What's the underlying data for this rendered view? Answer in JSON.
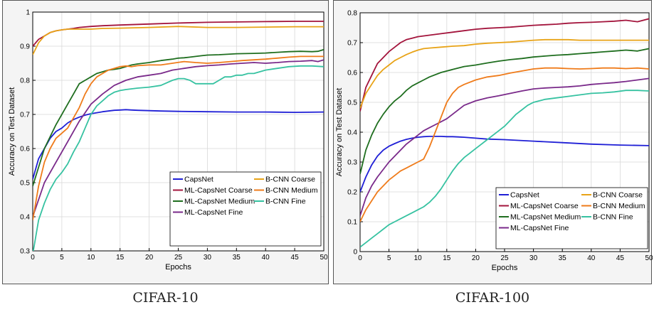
{
  "colors": {
    "CapsNet": "#1f1fd6",
    "ML-CapsNet Coarse": "#a3143c",
    "ML-CapsNet Medium": "#1f6e1f",
    "ML-CapsNet Fine": "#7a2a8a",
    "B-CNN Coarse": "#e8a317",
    "B-CNN Medium": "#ef7b1a",
    "B-CNN Fine": "#36c2a1"
  },
  "captions": {
    "left": "CIFAR-10",
    "right": "CIFAR-100"
  },
  "chart_data": [
    {
      "type": "line",
      "title": "CIFAR-10",
      "xlabel": "Epochs",
      "ylabel": "Accuracy on Test Dataset",
      "xlim": [
        0,
        50
      ],
      "ylim": [
        0.3,
        1.0
      ],
      "xticks": [
        0,
        5,
        10,
        15,
        20,
        25,
        30,
        35,
        40,
        45,
        50
      ],
      "yticks": [
        0.3,
        0.4,
        0.5,
        0.6,
        0.7,
        0.8,
        0.9,
        1.0
      ],
      "ytick_labels": [
        "0.3",
        "0.4",
        "0.5",
        "0.6",
        "0.7",
        "0.8",
        "0.9",
        "1"
      ],
      "grid": true,
      "legend_position": "bottom-right",
      "legend_order": [
        "CapsNet",
        "ML-CapsNet Coarse",
        "ML-CapsNet Medium",
        "ML-CapsNet Fine",
        "B-CNN Coarse",
        "B-CNN Medium",
        "B-CNN Fine"
      ],
      "series": [
        {
          "name": "CapsNet",
          "x": [
            0,
            1,
            2,
            3,
            4,
            5,
            6,
            7,
            8,
            9,
            10,
            11,
            12,
            13,
            14,
            15,
            16,
            17,
            18,
            20,
            22,
            25,
            30,
            35,
            40,
            45,
            50
          ],
          "values": [
            0.51,
            0.57,
            0.6,
            0.63,
            0.65,
            0.66,
            0.675,
            0.685,
            0.692,
            0.698,
            0.702,
            0.705,
            0.708,
            0.71,
            0.712,
            0.713,
            0.714,
            0.713,
            0.712,
            0.711,
            0.71,
            0.709,
            0.708,
            0.707,
            0.707,
            0.706,
            0.707
          ]
        },
        {
          "name": "ML-CapsNet Coarse",
          "x": [
            0,
            1,
            2,
            3,
            4,
            5,
            6,
            7,
            8,
            10,
            12,
            15,
            20,
            25,
            30,
            35,
            40,
            45,
            50
          ],
          "values": [
            0.9,
            0.92,
            0.93,
            0.94,
            0.945,
            0.948,
            0.95,
            0.952,
            0.955,
            0.958,
            0.96,
            0.962,
            0.965,
            0.968,
            0.97,
            0.971,
            0.972,
            0.973,
            0.973
          ]
        },
        {
          "name": "ML-CapsNet Medium",
          "x": [
            0,
            2,
            4,
            6,
            7,
            8,
            9,
            10,
            11,
            12,
            13,
            14,
            15,
            16,
            17,
            18,
            19,
            20,
            21,
            22,
            23,
            24,
            25,
            26,
            27,
            28,
            29,
            30,
            32,
            35,
            38,
            40,
            42,
            44,
            46,
            48,
            49,
            50
          ],
          "values": [
            0.49,
            0.6,
            0.67,
            0.73,
            0.76,
            0.79,
            0.8,
            0.81,
            0.82,
            0.825,
            0.83,
            0.832,
            0.835,
            0.84,
            0.845,
            0.848,
            0.85,
            0.852,
            0.855,
            0.858,
            0.86,
            0.862,
            0.865,
            0.866,
            0.868,
            0.87,
            0.872,
            0.874,
            0.875,
            0.878,
            0.879,
            0.88,
            0.882,
            0.884,
            0.885,
            0.884,
            0.885,
            0.89
          ]
        },
        {
          "name": "ML-CapsNet Fine",
          "x": [
            0,
            2,
            4,
            6,
            8,
            10,
            12,
            14,
            16,
            18,
            20,
            22,
            24,
            26,
            28,
            30,
            32,
            34,
            36,
            38,
            40,
            42,
            44,
            46,
            48,
            49,
            50
          ],
          "values": [
            0.4,
            0.5,
            0.56,
            0.62,
            0.68,
            0.73,
            0.76,
            0.785,
            0.8,
            0.81,
            0.815,
            0.82,
            0.83,
            0.835,
            0.84,
            0.843,
            0.845,
            0.848,
            0.85,
            0.852,
            0.85,
            0.852,
            0.855,
            0.856,
            0.858,
            0.855,
            0.86
          ]
        },
        {
          "name": "B-CNN Coarse",
          "x": [
            0,
            1,
            2,
            3,
            4,
            5,
            6,
            8,
            10,
            12,
            15,
            20,
            25,
            30,
            35,
            40,
            45,
            50
          ],
          "values": [
            0.875,
            0.91,
            0.93,
            0.94,
            0.945,
            0.948,
            0.95,
            0.95,
            0.95,
            0.952,
            0.953,
            0.955,
            0.958,
            0.955,
            0.955,
            0.956,
            0.957,
            0.957
          ]
        },
        {
          "name": "B-CNN Medium",
          "x": [
            0,
            1,
            2,
            3,
            4,
            5,
            6,
            7,
            8,
            9,
            10,
            11,
            12,
            13,
            14,
            15,
            16,
            17,
            18,
            20,
            22,
            24,
            26,
            28,
            30,
            32,
            34,
            36,
            38,
            40,
            42,
            44,
            46,
            48,
            50
          ],
          "values": [
            0.39,
            0.49,
            0.56,
            0.6,
            0.63,
            0.645,
            0.66,
            0.69,
            0.72,
            0.76,
            0.79,
            0.81,
            0.82,
            0.83,
            0.835,
            0.84,
            0.842,
            0.84,
            0.843,
            0.845,
            0.845,
            0.85,
            0.855,
            0.852,
            0.85,
            0.852,
            0.855,
            0.858,
            0.86,
            0.862,
            0.865,
            0.868,
            0.87,
            0.87,
            0.87
          ]
        },
        {
          "name": "B-CNN Fine",
          "x": [
            0,
            1,
            2,
            3,
            4,
            5,
            6,
            7,
            8,
            9,
            10,
            11,
            12,
            13,
            14,
            15,
            16,
            17,
            18,
            20,
            22,
            24,
            25,
            26,
            27,
            28,
            29,
            30,
            31,
            32,
            33,
            34,
            35,
            36,
            37,
            38,
            40,
            42,
            44,
            46,
            48,
            50
          ],
          "values": [
            0.29,
            0.39,
            0.44,
            0.48,
            0.51,
            0.53,
            0.555,
            0.59,
            0.62,
            0.66,
            0.7,
            0.725,
            0.74,
            0.755,
            0.765,
            0.77,
            0.773,
            0.775,
            0.777,
            0.78,
            0.785,
            0.8,
            0.805,
            0.805,
            0.8,
            0.79,
            0.79,
            0.79,
            0.79,
            0.8,
            0.81,
            0.81,
            0.815,
            0.815,
            0.82,
            0.82,
            0.83,
            0.835,
            0.84,
            0.842,
            0.842,
            0.84
          ]
        }
      ]
    },
    {
      "type": "line",
      "title": "CIFAR-100",
      "xlabel": "Epochs",
      "ylabel": "Accuracy on Test Dataset",
      "xlim": [
        0,
        50
      ],
      "ylim": [
        0,
        0.8
      ],
      "xticks": [
        0,
        5,
        10,
        15,
        20,
        25,
        30,
        35,
        40,
        45,
        50
      ],
      "yticks": [
        0,
        0.1,
        0.2,
        0.3,
        0.4,
        0.5,
        0.6,
        0.7,
        0.8
      ],
      "ytick_labels": [
        "0",
        "0.1",
        "0.2",
        "0.3",
        "0.4",
        "0.5",
        "0.6",
        "0.7",
        "0.8"
      ],
      "grid": true,
      "legend_position": "bottom-right",
      "legend_order": [
        "CapsNet",
        "ML-CapsNet Coarse",
        "ML-CapsNet Medium",
        "ML-CapsNet Fine",
        "B-CNN Coarse",
        "B-CNN Medium",
        "B-CNN Fine"
      ],
      "series": [
        {
          "name": "CapsNet",
          "x": [
            0,
            1,
            2,
            3,
            4,
            5,
            6,
            7,
            8,
            9,
            10,
            11,
            12,
            13,
            14,
            15,
            16,
            17,
            18,
            20,
            22,
            25,
            30,
            35,
            40,
            45,
            50
          ],
          "values": [
            0.2,
            0.25,
            0.29,
            0.32,
            0.34,
            0.353,
            0.362,
            0.37,
            0.376,
            0.38,
            0.383,
            0.385,
            0.386,
            0.386,
            0.386,
            0.385,
            0.385,
            0.384,
            0.383,
            0.38,
            0.377,
            0.375,
            0.37,
            0.365,
            0.36,
            0.357,
            0.355
          ]
        },
        {
          "name": "ML-CapsNet Coarse",
          "x": [
            0,
            1,
            2,
            3,
            4,
            5,
            6,
            7,
            8,
            9,
            10,
            12,
            14,
            16,
            18,
            20,
            22,
            24,
            26,
            28,
            30,
            32,
            34,
            36,
            38,
            40,
            42,
            44,
            46,
            48,
            50
          ],
          "values": [
            0.47,
            0.55,
            0.59,
            0.63,
            0.65,
            0.67,
            0.685,
            0.7,
            0.71,
            0.715,
            0.72,
            0.725,
            0.73,
            0.735,
            0.74,
            0.745,
            0.748,
            0.75,
            0.752,
            0.755,
            0.758,
            0.76,
            0.762,
            0.765,
            0.767,
            0.768,
            0.77,
            0.772,
            0.775,
            0.77,
            0.78
          ]
        },
        {
          "name": "ML-CapsNet Medium",
          "x": [
            0,
            1,
            2,
            3,
            4,
            5,
            6,
            7,
            8,
            9,
            10,
            11,
            12,
            14,
            16,
            18,
            20,
            22,
            24,
            26,
            28,
            30,
            32,
            34,
            36,
            38,
            40,
            42,
            44,
            46,
            48,
            50
          ],
          "values": [
            0.26,
            0.34,
            0.39,
            0.43,
            0.46,
            0.485,
            0.505,
            0.52,
            0.54,
            0.555,
            0.565,
            0.575,
            0.585,
            0.6,
            0.61,
            0.62,
            0.625,
            0.632,
            0.638,
            0.643,
            0.647,
            0.652,
            0.655,
            0.658,
            0.66,
            0.663,
            0.666,
            0.669,
            0.672,
            0.675,
            0.672,
            0.68
          ]
        },
        {
          "name": "ML-CapsNet Fine",
          "x": [
            0,
            1,
            2,
            3,
            4,
            5,
            6,
            7,
            8,
            9,
            10,
            11,
            12,
            13,
            14,
            15,
            16,
            18,
            20,
            22,
            24,
            26,
            28,
            30,
            32,
            34,
            36,
            38,
            40,
            42,
            44,
            46,
            48,
            50
          ],
          "values": [
            0.12,
            0.18,
            0.22,
            0.25,
            0.275,
            0.3,
            0.32,
            0.34,
            0.36,
            0.375,
            0.39,
            0.405,
            0.415,
            0.425,
            0.435,
            0.445,
            0.46,
            0.49,
            0.505,
            0.515,
            0.522,
            0.53,
            0.538,
            0.545,
            0.548,
            0.55,
            0.552,
            0.555,
            0.56,
            0.563,
            0.566,
            0.57,
            0.575,
            0.58
          ]
        },
        {
          "name": "B-CNN Coarse",
          "x": [
            0,
            1,
            2,
            3,
            4,
            5,
            6,
            7,
            8,
            9,
            10,
            11,
            12,
            14,
            16,
            18,
            20,
            22,
            24,
            26,
            28,
            30,
            32,
            34,
            36,
            38,
            40,
            42,
            44,
            46,
            48,
            50
          ],
          "values": [
            0.48,
            0.53,
            0.56,
            0.59,
            0.61,
            0.625,
            0.64,
            0.65,
            0.66,
            0.668,
            0.675,
            0.68,
            0.682,
            0.685,
            0.688,
            0.69,
            0.695,
            0.698,
            0.7,
            0.702,
            0.705,
            0.708,
            0.71,
            0.71,
            0.71,
            0.708,
            0.708,
            0.708,
            0.708,
            0.708,
            0.708,
            0.708
          ]
        },
        {
          "name": "B-CNN Medium",
          "x": [
            0,
            1,
            2,
            3,
            4,
            5,
            6,
            7,
            8,
            9,
            10,
            11,
            12,
            13,
            14,
            15,
            16,
            17,
            18,
            20,
            22,
            24,
            26,
            28,
            30,
            32,
            34,
            36,
            38,
            40,
            42,
            44,
            46,
            48,
            50
          ],
          "values": [
            0.1,
            0.14,
            0.17,
            0.2,
            0.22,
            0.24,
            0.255,
            0.27,
            0.28,
            0.29,
            0.3,
            0.31,
            0.35,
            0.4,
            0.45,
            0.5,
            0.53,
            0.55,
            0.56,
            0.575,
            0.585,
            0.59,
            0.598,
            0.605,
            0.612,
            0.615,
            0.615,
            0.613,
            0.612,
            0.613,
            0.615,
            0.615,
            0.613,
            0.615,
            0.612
          ]
        },
        {
          "name": "B-CNN Fine",
          "x": [
            0,
            1,
            2,
            3,
            4,
            5,
            6,
            7,
            8,
            9,
            10,
            11,
            12,
            13,
            14,
            15,
            16,
            17,
            18,
            19,
            20,
            21,
            22,
            23,
            24,
            25,
            26,
            27,
            28,
            29,
            30,
            32,
            34,
            36,
            38,
            40,
            42,
            44,
            46,
            48,
            50
          ],
          "values": [
            0.015,
            0.03,
            0.045,
            0.06,
            0.075,
            0.09,
            0.1,
            0.11,
            0.12,
            0.13,
            0.14,
            0.15,
            0.165,
            0.185,
            0.21,
            0.24,
            0.27,
            0.295,
            0.315,
            0.33,
            0.345,
            0.36,
            0.375,
            0.39,
            0.405,
            0.42,
            0.44,
            0.46,
            0.475,
            0.49,
            0.5,
            0.51,
            0.515,
            0.52,
            0.525,
            0.53,
            0.532,
            0.535,
            0.54,
            0.54,
            0.538
          ]
        }
      ]
    }
  ]
}
